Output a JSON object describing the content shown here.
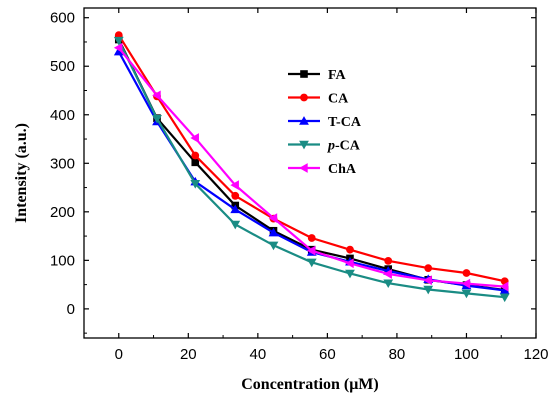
{
  "chart_data": {
    "type": "line",
    "xlabel": "Concentration (μM)",
    "ylabel": "Intensity (a.u.)",
    "xlim": [
      -10,
      120
    ],
    "ylim": [
      -60,
      620
    ],
    "xticks": [
      0,
      20,
      40,
      60,
      80,
      100,
      120
    ],
    "yticks": [
      0,
      100,
      200,
      300,
      400,
      500,
      600
    ],
    "grid": false,
    "legend_position": "upper-center",
    "series": [
      {
        "name": "FA",
        "name_parts": {
          "prefix": "",
          "italic": "",
          "suffix": "FA"
        },
        "color": "#000000",
        "marker": "square",
        "x": [
          0,
          11,
          22,
          33.5,
          44.5,
          55.5,
          66.5,
          77.5,
          89,
          100,
          111
        ],
        "y": [
          555,
          393,
          302,
          213,
          161,
          122,
          104,
          82,
          60,
          49,
          39
        ]
      },
      {
        "name": "CA",
        "name_parts": {
          "prefix": "",
          "italic": "",
          "suffix": "CA"
        },
        "color": "#ff0000",
        "marker": "circle",
        "x": [
          0,
          11,
          22,
          33.5,
          44.5,
          55.5,
          66.5,
          77.5,
          89,
          100,
          111
        ],
        "y": [
          564,
          438,
          316,
          233,
          186,
          146,
          122,
          99,
          84,
          74,
          57
        ]
      },
      {
        "name": "T-CA",
        "name_parts": {
          "prefix": "",
          "italic": "",
          "suffix": "T-CA"
        },
        "color": "#0000ff",
        "marker": "triangle-up",
        "x": [
          0,
          11,
          22,
          33.5,
          44.5,
          55.5,
          66.5,
          77.5,
          89,
          100,
          111
        ],
        "y": [
          530,
          386,
          262,
          205,
          157,
          117,
          97,
          78,
          61,
          48,
          38
        ]
      },
      {
        "name": "p-CA",
        "name_parts": {
          "prefix": "",
          "italic": "p",
          "suffix": "-CA"
        },
        "color": "#1a8c84",
        "marker": "triangle-down",
        "x": [
          0,
          11,
          22,
          33.5,
          44.5,
          55.5,
          66.5,
          77.5,
          89,
          100,
          111
        ],
        "y": [
          553,
          392,
          258,
          174,
          131,
          96,
          73,
          53,
          40,
          32,
          24
        ]
      },
      {
        "name": "ChA",
        "name_parts": {
          "prefix": "",
          "italic": "",
          "suffix": "ChA"
        },
        "color": "#ff00ff",
        "marker": "triangle-left",
        "x": [
          0,
          11,
          22,
          33.5,
          44.5,
          55.5,
          66.5,
          77.5,
          89,
          100,
          111
        ],
        "y": [
          538,
          440,
          352,
          255,
          187,
          120,
          94,
          72,
          59,
          52,
          46
        ]
      }
    ]
  }
}
